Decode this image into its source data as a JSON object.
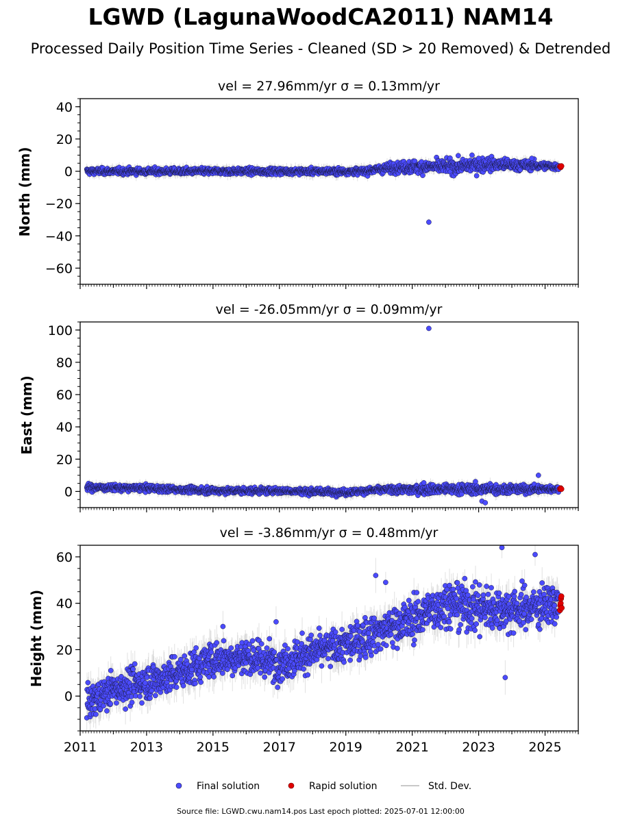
{
  "figure": {
    "title": "LGWD (LagunaWoodCA2011) NAM14",
    "subtitle": "Processed Daily Position Time Series - Cleaned (SD > 20 Removed) & Detrended",
    "source_note": "Source file: LGWD.cwu.nam14.pos  Last epoch plotted: 2025-07-01 12:00:00"
  },
  "legend": {
    "final": "Final solution",
    "rapid": "Rapid solution",
    "std": "Std. Dev."
  },
  "colors": {
    "final": "#4b4bff",
    "final_edge": "#1a1a40",
    "rapid": "#e00000",
    "std": "#c8c8c8",
    "axis": "#000000"
  },
  "chart_data": [
    {
      "type": "scatter",
      "panel": "north",
      "title": "vel = 27.96mm/yr   σ = 0.13mm/yr",
      "ylabel": "North (mm)",
      "xlim": [
        2011.0,
        2026.0
      ],
      "ylim": [
        -70,
        45
      ],
      "yticks": [
        40,
        20,
        0,
        -20,
        -40,
        -60
      ],
      "ytick_labels": [
        "40",
        "20",
        "0",
        "−20",
        "−40",
        "−60"
      ],
      "series": [
        {
          "name": "Final solution",
          "trend": [
            [
              2011.2,
              0
            ],
            [
              2019.5,
              0
            ],
            [
              2020.5,
              2.5
            ],
            [
              2022.5,
              3
            ],
            [
              2023.2,
              4.5
            ],
            [
              2025.4,
              3
            ]
          ],
          "spread": [
            [
              2011.2,
              1.5
            ],
            [
              2019.5,
              1.5
            ],
            [
              2021.0,
              3
            ],
            [
              2023.0,
              3.5
            ],
            [
              2025.4,
              1.5
            ]
          ],
          "stddev": 3,
          "outliers": [
            [
              2021.5,
              -31.5
            ],
            [
              2022.8,
              10
            ],
            [
              2023.0,
              8
            ],
            [
              2024.6,
              8
            ]
          ]
        },
        {
          "name": "Rapid solution",
          "points": [
            [
              2025.45,
              3
            ],
            [
              2025.47,
              2.5
            ],
            [
              2025.49,
              3.2
            ]
          ]
        }
      ]
    },
    {
      "type": "scatter",
      "panel": "east",
      "title": "vel = -26.05mm/yr   σ = 0.09mm/yr",
      "ylabel": "East (mm)",
      "xlim": [
        2011.0,
        2026.0
      ],
      "ylim": [
        -10,
        105
      ],
      "yticks": [
        100,
        80,
        60,
        40,
        20,
        0
      ],
      "ytick_labels": [
        "100",
        "80",
        "60",
        "40",
        "20",
        "0"
      ],
      "series": [
        {
          "name": "Final solution",
          "trend": [
            [
              2011.2,
              2.5
            ],
            [
              2013.0,
              2
            ],
            [
              2015.0,
              0.5
            ],
            [
              2017.0,
              0.5
            ],
            [
              2019.0,
              -0.5
            ],
            [
              2020.0,
              1
            ],
            [
              2022.0,
              1.5
            ],
            [
              2024.0,
              1.5
            ],
            [
              2025.4,
              1.5
            ]
          ],
          "spread": [
            [
              2011.2,
              1.5
            ],
            [
              2020.0,
              1.5
            ],
            [
              2021.5,
              2.5
            ],
            [
              2023.5,
              2.5
            ],
            [
              2025.4,
              1.5
            ]
          ],
          "stddev": 3,
          "outliers": [
            [
              2021.5,
              101
            ],
            [
              2023.1,
              -6
            ],
            [
              2023.2,
              -7
            ],
            [
              2024.8,
              10
            ]
          ]
        },
        {
          "name": "Rapid solution",
          "points": [
            [
              2025.45,
              1.5
            ],
            [
              2025.47,
              2
            ],
            [
              2025.49,
              1.5
            ]
          ]
        }
      ]
    },
    {
      "type": "scatter",
      "panel": "height",
      "title": "vel = -3.86mm/yr   σ = 0.48mm/yr",
      "ylabel": "Height (mm)",
      "xlim": [
        2011.0,
        2026.0
      ],
      "ylim": [
        -15,
        65
      ],
      "yticks": [
        60,
        40,
        20,
        0
      ],
      "ytick_labels": [
        "60",
        "40",
        "20",
        "0"
      ],
      "xticks": [
        2011,
        2013,
        2015,
        2017,
        2019,
        2021,
        2023,
        2025
      ],
      "xtick_labels": [
        "2011",
        "2013",
        "2015",
        "2017",
        "2019",
        "2021",
        "2023",
        "2025"
      ],
      "series": [
        {
          "name": "Final solution",
          "trend": [
            [
              2011.2,
              -3
            ],
            [
              2012.0,
              3
            ],
            [
              2013.0,
              6
            ],
            [
              2014.0,
              10
            ],
            [
              2015.0,
              16
            ],
            [
              2016.0,
              17
            ],
            [
              2017.0,
              14
            ],
            [
              2018.0,
              19
            ],
            [
              2019.0,
              22
            ],
            [
              2020.0,
              28
            ],
            [
              2021.0,
              33
            ],
            [
              2022.0,
              40
            ],
            [
              2023.0,
              38
            ],
            [
              2024.0,
              37
            ],
            [
              2025.4,
              40
            ]
          ],
          "spread": [
            [
              2011.2,
              5
            ],
            [
              2013.0,
              6
            ],
            [
              2016.0,
              6
            ],
            [
              2019.0,
              6
            ],
            [
              2021.0,
              7
            ],
            [
              2023.0,
              8
            ],
            [
              2025.4,
              6
            ]
          ],
          "stddev": 6,
          "outliers": [
            [
              2019.9,
              52
            ],
            [
              2020.2,
              49
            ],
            [
              2023.7,
              64
            ],
            [
              2023.8,
              8
            ],
            [
              2024.7,
              61
            ],
            [
              2015.3,
              30
            ],
            [
              2016.9,
              32
            ]
          ]
        },
        {
          "name": "Rapid solution",
          "points": [
            [
              2025.45,
              37
            ],
            [
              2025.46,
              39
            ],
            [
              2025.47,
              40
            ],
            [
              2025.48,
              42
            ],
            [
              2025.49,
              43
            ],
            [
              2025.5,
              38
            ]
          ]
        }
      ]
    }
  ]
}
